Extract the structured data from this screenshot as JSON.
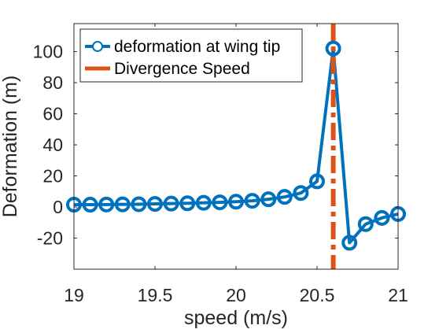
{
  "chart_data": {
    "type": "line",
    "xlabel": "speed (m/s)",
    "ylabel": "Deformation (m)",
    "xlim": [
      19,
      21
    ],
    "ylim": [
      -40,
      118
    ],
    "xticks": [
      19,
      19.5,
      20,
      20.5,
      21
    ],
    "xtick_labels": [
      "19",
      "19.5",
      "20",
      "20.5",
      "21"
    ],
    "yticks": [
      -20,
      0,
      20,
      40,
      60,
      80,
      100
    ],
    "ytick_labels": [
      "-20",
      "0",
      "20",
      "40",
      "60",
      "80",
      "100"
    ],
    "grid": false,
    "legend_position": "top-left",
    "series": [
      {
        "name": "deformation at wing tip",
        "color": "#0072BD",
        "marker": "circle",
        "x": [
          19.0,
          19.1,
          19.2,
          19.3,
          19.4,
          19.5,
          19.6,
          19.7,
          19.8,
          19.9,
          20.0,
          20.1,
          20.2,
          20.3,
          20.4,
          20.5,
          20.6,
          20.7,
          20.8,
          20.9,
          21.0
        ],
        "y": [
          1.5,
          1.5,
          1.6,
          1.7,
          1.8,
          2.0,
          2.2,
          2.4,
          2.7,
          3.0,
          3.4,
          4.0,
          5.0,
          6.5,
          9.0,
          16.5,
          102,
          -23,
          -11,
          -7,
          -4.5
        ]
      }
    ],
    "vlines": [
      {
        "name": "Divergence Speed",
        "x": 20.6,
        "color": "#D95319",
        "style": "dash-dot"
      }
    ]
  }
}
